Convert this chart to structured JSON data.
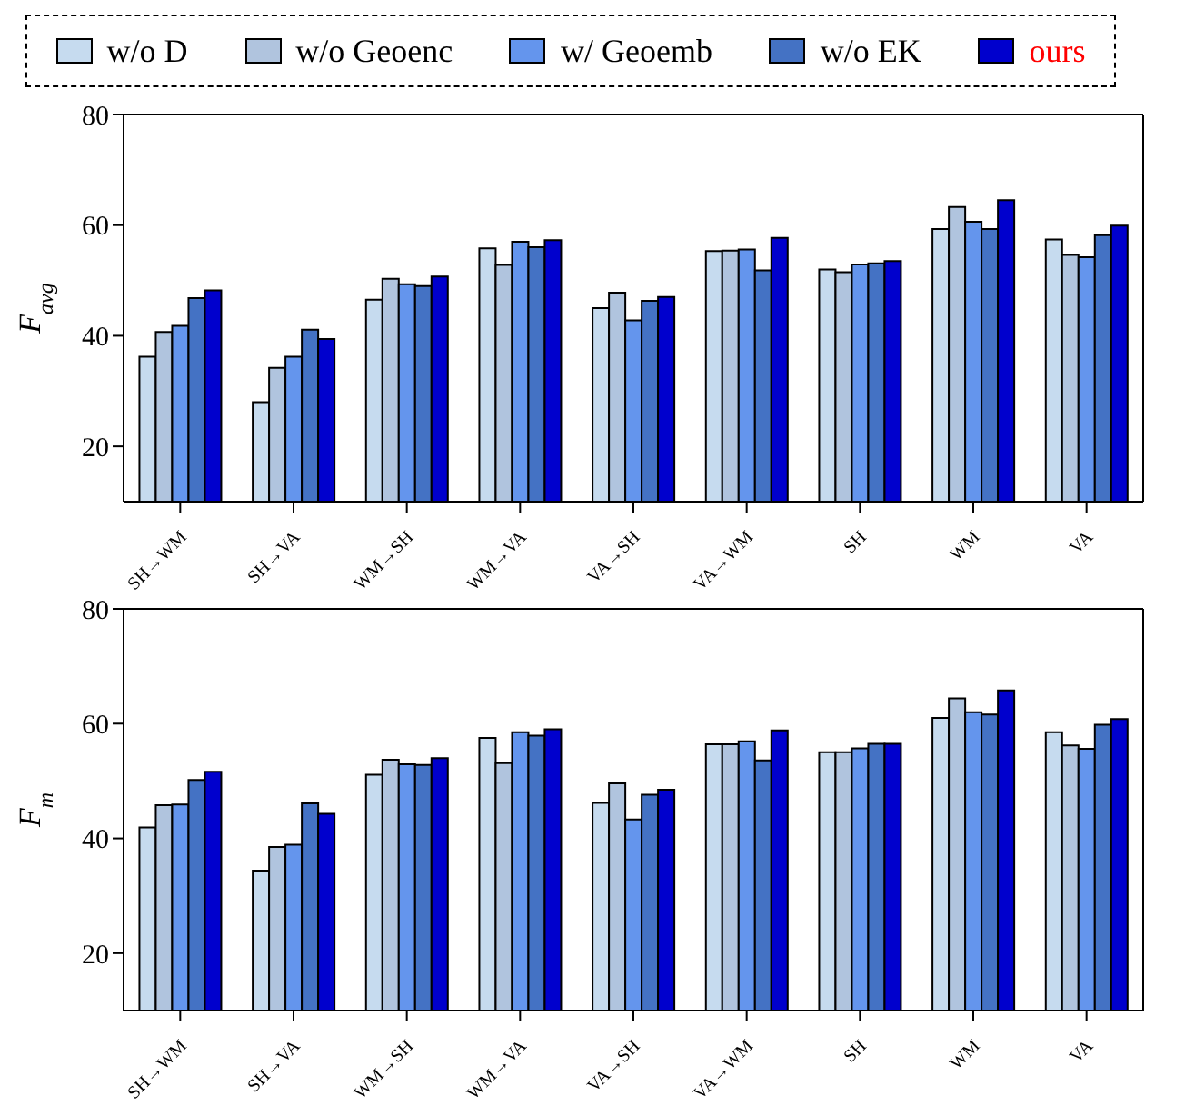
{
  "chart_data": [
    {
      "type": "bar",
      "ylabel": "F$_{avg}$",
      "categories": [
        "SH→WM",
        "SH→VA",
        "WM→SH",
        "WM→VA",
        "VA→SH",
        "VA→WM",
        "SH",
        "WM",
        "VA"
      ],
      "ylim": [
        10,
        80
      ],
      "yticks": [
        20,
        40,
        60,
        80
      ],
      "legend": "top",
      "series": [
        {
          "name": "w/o D",
          "color": "#c6dbef",
          "values": [
            36.2,
            28,
            46.5,
            55.8,
            45,
            55.3,
            52,
            59.3,
            57.4
          ]
        },
        {
          "name": "w/o Geoenc",
          "color": "#b0c4de",
          "values": [
            40.7,
            34.2,
            50.3,
            52.8,
            47.8,
            55.4,
            51.5,
            63.3,
            54.6
          ]
        },
        {
          "name": "w/ Geoemb",
          "color": "#6495ed",
          "values": [
            41.8,
            36.2,
            49.3,
            57,
            42.8,
            55.6,
            52.9,
            60.6,
            54.2
          ]
        },
        {
          "name": "w/o EK",
          "color": "#4472c4",
          "values": [
            46.8,
            41.1,
            49,
            56,
            46.3,
            51.8,
            53.1,
            59.3,
            58.2
          ]
        },
        {
          "name": "ours",
          "color": "#0000cd",
          "values": [
            48.2,
            39.4,
            50.7,
            57.3,
            47,
            57.7,
            53.5,
            64.5,
            59.9
          ]
        }
      ]
    },
    {
      "type": "bar",
      "ylabel": "F$_{m}$",
      "categories": [
        "SH→WM",
        "SH→VA",
        "WM→SH",
        "WM→VA",
        "VA→SH",
        "VA→WM",
        "SH",
        "WM",
        "VA"
      ],
      "ylim": [
        10,
        80
      ],
      "yticks": [
        20,
        40,
        60,
        80
      ],
      "series": [
        {
          "color": "#c6dbef",
          "values": [
            41.9,
            34.4,
            51.1,
            57.5,
            46.2,
            56.4,
            55,
            61,
            58.5
          ]
        },
        {
          "color": "#b0c4de",
          "values": [
            45.8,
            38.5,
            53.7,
            53.1,
            49.6,
            56.4,
            55,
            64.4,
            56.2
          ]
        },
        {
          "color": "#6495ed",
          "values": [
            45.9,
            38.9,
            52.9,
            58.5,
            43.3,
            56.9,
            55.7,
            62,
            55.6
          ]
        },
        {
          "color": "#4472c4",
          "values": [
            50.2,
            46.1,
            52.8,
            57.9,
            47.6,
            53.6,
            56.5,
            61.6,
            59.8
          ]
        },
        {
          "color": "#0000cd",
          "values": [
            51.6,
            44.3,
            54,
            59,
            48.5,
            58.8,
            56.5,
            65.8,
            60.8
          ]
        }
      ]
    }
  ]
}
